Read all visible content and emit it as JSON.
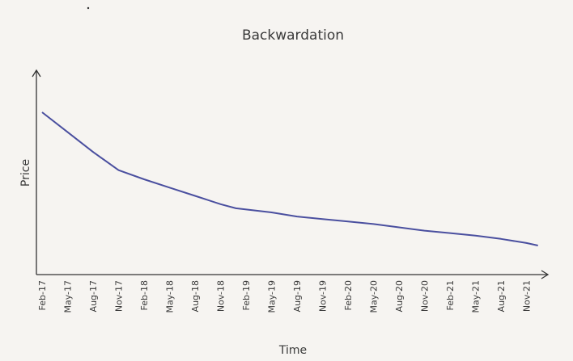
{
  "chart_data": {
    "type": "line",
    "title": "Backwardation",
    "xlabel": "Time",
    "ylabel": "Price",
    "categories": [
      "Feb-17",
      "May-17",
      "Aug-17",
      "Nov-17",
      "Feb-18",
      "May-18",
      "Aug-18",
      "Nov-18",
      "Feb-19",
      "May-19",
      "Aug-19",
      "Nov-19",
      "Feb-20",
      "May-20",
      "Aug-20",
      "Nov-20",
      "Feb-21",
      "May-21",
      "Aug-21",
      "Nov-21"
    ],
    "series": [
      {
        "name": "",
        "x": [
          0,
          1,
          2,
          3,
          4,
          5,
          6,
          7,
          7.6,
          9,
          10,
          11,
          12,
          13,
          14,
          15,
          16,
          17,
          18,
          19,
          19.45
        ],
        "values": [
          100,
          88,
          76,
          65,
          59.5,
          54.5,
          49.5,
          44.5,
          42,
          39.5,
          37,
          35.5,
          34,
          32.5,
          30.5,
          28.5,
          27,
          25.5,
          23.5,
          21,
          19.5
        ]
      }
    ],
    "ylim": [
      0,
      100
    ],
    "y_tick_labels": false,
    "grid": false,
    "line_color": "#4a4f9f",
    "axis_color": "#333333"
  }
}
